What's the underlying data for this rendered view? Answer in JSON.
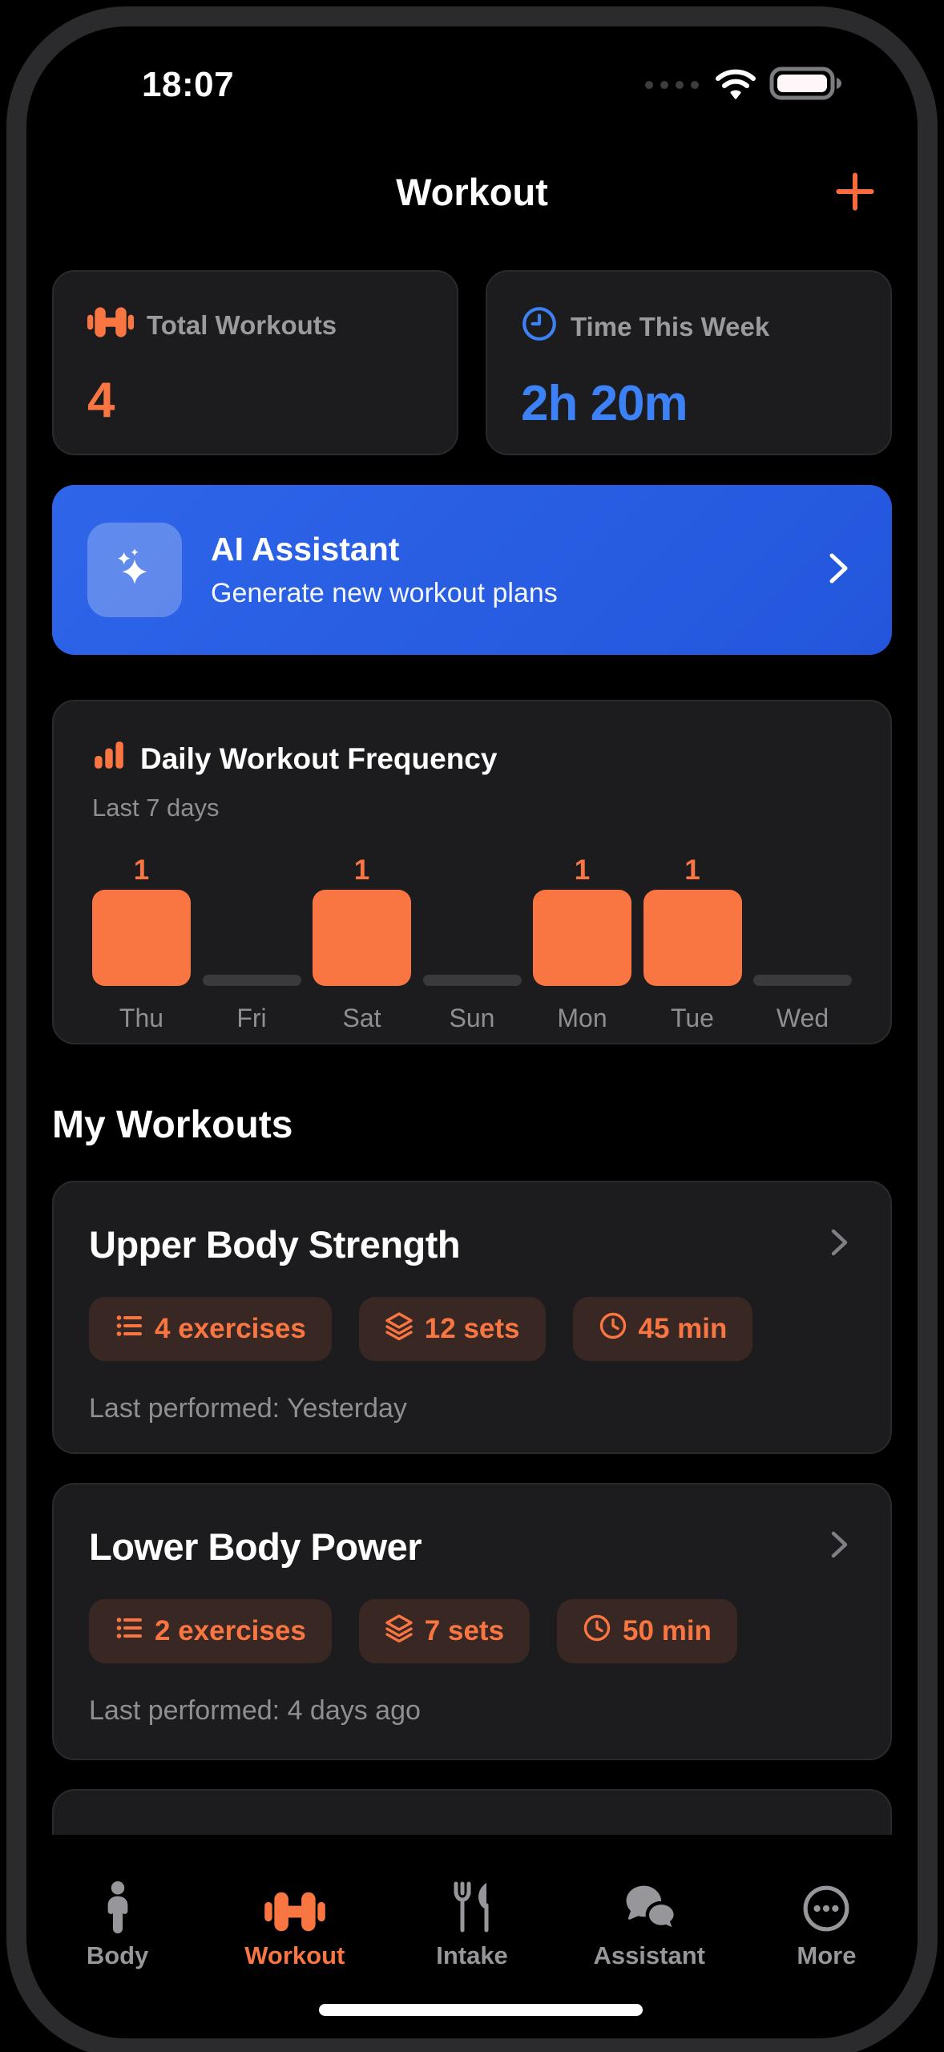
{
  "colors": {
    "accent_orange": "#F97642",
    "accent_blue": "#3C82F6",
    "card_bg": "#1C1C1E",
    "banner_from": "#2E65E9",
    "banner_to": "#2356DC",
    "muted_gray": "#8E8E93",
    "zero_bar": "#3A3A3C"
  },
  "status_bar": {
    "time": "18:07",
    "icons": [
      "cellular-signal-icon",
      "wifi-icon",
      "battery-icon"
    ]
  },
  "header": {
    "title": "Workout",
    "add_icon": "plus-icon"
  },
  "stats": [
    {
      "icon": "dumbbell-icon",
      "label": "Total Workouts",
      "value": "4"
    },
    {
      "icon": "clock-icon",
      "label": "Time This Week",
      "value": "2h 20m"
    }
  ],
  "ai_banner": {
    "icon": "sparkles-icon",
    "title": "AI Assistant",
    "subtitle": "Generate new workout plans",
    "chevron": "chevron-right-icon"
  },
  "chart_card": {
    "icon": "bar-chart-icon",
    "title": "Daily Workout Frequency",
    "subtitle": "Last 7 days"
  },
  "chart_data": {
    "type": "bar",
    "title": "Daily Workout Frequency",
    "subtitle": "Last 7 days",
    "categories": [
      "Thu",
      "Fri",
      "Sat",
      "Sun",
      "Mon",
      "Tue",
      "Wed"
    ],
    "values": [
      1,
      0,
      1,
      0,
      1,
      1,
      0
    ],
    "xlabel": "",
    "ylabel": "",
    "ylim": [
      0,
      1
    ],
    "grid": false,
    "legend": false,
    "bar_color": "#F97642",
    "zero_stub_color": "#3A3A3C",
    "value_labels": "shown above non-zero bars"
  },
  "my_workouts": {
    "heading": "My Workouts",
    "pill_icons": {
      "exercises": "list-icon",
      "sets": "layers-icon",
      "duration": "clock-icon"
    },
    "items": [
      {
        "title": "Upper Body Strength",
        "exercises": "4 exercises",
        "sets": "12 sets",
        "duration": "45 min",
        "last_performed": "Last performed: Yesterday"
      },
      {
        "title": "Lower Body Power",
        "exercises": "2 exercises",
        "sets": "7 sets",
        "duration": "50 min",
        "last_performed": "Last performed: 4 days ago"
      }
    ]
  },
  "tab_bar": {
    "items": [
      {
        "label": "Body",
        "icon": "person-icon",
        "active": false
      },
      {
        "label": "Workout",
        "icon": "dumbbell-icon",
        "active": true
      },
      {
        "label": "Intake",
        "icon": "fork-knife-icon",
        "active": false
      },
      {
        "label": "Assistant",
        "icon": "chat-bubbles-icon",
        "active": false
      },
      {
        "label": "More",
        "icon": "more-icon",
        "active": false
      }
    ]
  }
}
